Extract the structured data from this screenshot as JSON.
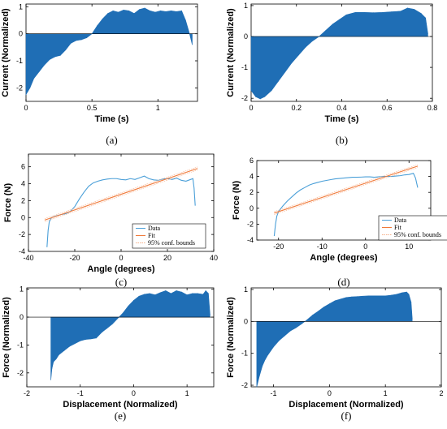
{
  "colors": {
    "fill": "#1f6eb5",
    "data_line": "#4a9fd8",
    "fit_line": "#f07a3a",
    "axis": "#000000"
  },
  "chart_data": [
    {
      "id": "a",
      "caption": "(a)",
      "type": "area",
      "xlabel": "Time (s)",
      "ylabel": "Current (Normalized)",
      "xlim": [
        0,
        1.3
      ],
      "ylim": [
        -2.5,
        1.1
      ],
      "xticks": [
        0,
        0.5,
        1
      ],
      "yticks": [
        -2,
        -1,
        0,
        1
      ],
      "x": [
        0,
        0.03,
        0.06,
        0.1,
        0.14,
        0.18,
        0.22,
        0.26,
        0.3,
        0.34,
        0.38,
        0.42,
        0.46,
        0.5,
        0.54,
        0.58,
        0.62,
        0.66,
        0.7,
        0.74,
        0.78,
        0.82,
        0.86,
        0.9,
        0.94,
        0.98,
        1.02,
        1.06,
        1.1,
        1.14,
        1.18,
        1.21,
        1.24,
        1.26
      ],
      "y": [
        -2.25,
        -2.0,
        -1.65,
        -1.4,
        -1.15,
        -0.95,
        -0.85,
        -0.8,
        -0.6,
        -0.35,
        -0.25,
        -0.22,
        -0.15,
        0.0,
        0.3,
        0.55,
        0.75,
        0.85,
        0.8,
        0.88,
        0.85,
        0.75,
        0.9,
        0.95,
        0.85,
        0.8,
        0.85,
        0.82,
        0.85,
        0.82,
        0.85,
        0.5,
        0.0,
        -0.4
      ]
    },
    {
      "id": "b",
      "caption": "(b)",
      "type": "area",
      "xlabel": "Time (s)",
      "ylabel": "Current (Normalized)",
      "xlim": [
        0,
        0.8
      ],
      "ylim": [
        -2.1,
        1.05
      ],
      "xticks": [
        0,
        0.2,
        0.4,
        0.6,
        0.8
      ],
      "yticks": [
        -2,
        -1,
        0,
        1
      ],
      "x": [
        0,
        0.02,
        0.04,
        0.06,
        0.09,
        0.12,
        0.15,
        0.18,
        0.21,
        0.24,
        0.27,
        0.3,
        0.33,
        0.36,
        0.39,
        0.42,
        0.46,
        0.5,
        0.54,
        0.58,
        0.62,
        0.66,
        0.69,
        0.72,
        0.75,
        0.77,
        0.78
      ],
      "y": [
        -1.75,
        -1.95,
        -2.02,
        -1.95,
        -1.75,
        -1.45,
        -1.15,
        -0.85,
        -0.6,
        -0.35,
        -0.15,
        0.0,
        0.2,
        0.4,
        0.55,
        0.7,
        0.78,
        0.78,
        0.77,
        0.78,
        0.8,
        0.82,
        0.92,
        0.88,
        0.75,
        0.6,
        0.1
      ]
    },
    {
      "id": "c",
      "caption": "(c)",
      "type": "line",
      "xlabel": "Angle (degrees)",
      "ylabel": "Force (N)",
      "xlim": [
        -40,
        40
      ],
      "ylim": [
        -4,
        7.5
      ],
      "xticks": [
        -40,
        -20,
        0,
        20,
        40
      ],
      "yticks": [
        -4,
        -2,
        0,
        2,
        4,
        6
      ],
      "legend": [
        "Data",
        "Fit",
        "95% conf. bounds"
      ],
      "legend_position": "bottom-center",
      "series": [
        {
          "name": "Data",
          "x": [
            -32,
            -31.5,
            -31,
            -30,
            -28,
            -26,
            -24,
            -22,
            -20,
            -18,
            -16,
            -14,
            -12,
            -10,
            -8,
            -6,
            -4,
            -2,
            0,
            2,
            4,
            6,
            8,
            10,
            12,
            14,
            16,
            18,
            20,
            22,
            24,
            26,
            28,
            30,
            31,
            31.5,
            32
          ],
          "y": [
            -3.5,
            -1.5,
            -0.5,
            0.0,
            0.2,
            0.35,
            0.45,
            0.7,
            1.3,
            2.2,
            3.0,
            3.7,
            4.1,
            4.3,
            4.45,
            4.55,
            4.6,
            4.6,
            4.5,
            4.45,
            4.6,
            4.5,
            4.7,
            4.9,
            4.6,
            4.45,
            4.4,
            4.55,
            4.6,
            4.5,
            4.65,
            4.4,
            4.3,
            4.5,
            4.6,
            3.5,
            1.4
          ]
        },
        {
          "name": "Fit",
          "x": [
            -33,
            33
          ],
          "y": [
            -0.3,
            5.8
          ]
        }
      ]
    },
    {
      "id": "d",
      "caption": "(d)",
      "type": "line",
      "xlabel": "Angle (degrees)",
      "ylabel": "Force (N)",
      "xlim": [
        -25,
        15
      ],
      "ylim": [
        -4,
        6
      ],
      "xticks": [
        -20,
        -10,
        0,
        10
      ],
      "yticks": [
        -4,
        -2,
        0,
        2,
        4,
        6
      ],
      "legend": [
        "Data",
        "Fit",
        "95% conf. bounds"
      ],
      "legend_position": "bottom-right",
      "series": [
        {
          "name": "Data",
          "x": [
            -21,
            -20.7,
            -20.4,
            -20,
            -19,
            -18,
            -17,
            -16,
            -15,
            -14,
            -13,
            -12,
            -11,
            -10,
            -9,
            -8,
            -7,
            -6,
            -5,
            -4,
            -3,
            -2,
            -1,
            0,
            1,
            2,
            3,
            4,
            5,
            6,
            7,
            8,
            9,
            10,
            11,
            11.5,
            12
          ],
          "y": [
            -3.5,
            -2.0,
            -1.0,
            -0.4,
            0.3,
            0.9,
            1.4,
            1.9,
            2.3,
            2.6,
            2.9,
            3.1,
            3.25,
            3.4,
            3.5,
            3.6,
            3.7,
            3.75,
            3.8,
            3.85,
            3.9,
            3.9,
            3.92,
            3.95,
            3.95,
            3.9,
            3.95,
            4.0,
            4.0,
            4.0,
            4.05,
            4.1,
            4.2,
            4.25,
            4.4,
            3.8,
            2.6
          ]
        },
        {
          "name": "Fit",
          "x": [
            -21,
            12
          ],
          "y": [
            -0.6,
            5.3
          ]
        }
      ]
    },
    {
      "id": "e",
      "caption": "(e)",
      "type": "area",
      "xlabel": "Displacement (Normalized)",
      "ylabel": "Force (Normalized)",
      "xlim": [
        -2,
        1.5
      ],
      "ylim": [
        -2.5,
        1.05
      ],
      "xticks": [
        -2,
        -1,
        0,
        1
      ],
      "yticks": [
        -2,
        -1,
        0,
        1
      ],
      "x": [
        -1.55,
        -1.53,
        -1.5,
        -1.45,
        -1.4,
        -1.3,
        -1.2,
        -1.1,
        -1.0,
        -0.9,
        -0.8,
        -0.7,
        -0.6,
        -0.5,
        -0.4,
        -0.3,
        -0.2,
        -0.1,
        0.0,
        0.1,
        0.2,
        0.3,
        0.4,
        0.5,
        0.6,
        0.7,
        0.8,
        0.9,
        1.0,
        1.1,
        1.2,
        1.3,
        1.35,
        1.4,
        1.43
      ],
      "y": [
        -2.25,
        -1.85,
        -1.6,
        -1.5,
        -1.35,
        -1.2,
        -1.05,
        -0.95,
        -0.85,
        -0.8,
        -0.78,
        -0.75,
        -0.55,
        -0.4,
        -0.25,
        -0.05,
        0.15,
        0.4,
        0.6,
        0.75,
        0.82,
        0.85,
        0.8,
        0.88,
        0.95,
        0.85,
        0.95,
        0.9,
        0.8,
        0.85,
        0.85,
        0.82,
        0.95,
        0.85,
        0.1
      ]
    },
    {
      "id": "f",
      "caption": "(f)",
      "type": "area",
      "xlabel": "Displacement (Normalized)",
      "ylabel": "Force (Normalized)",
      "xlim": [
        -1.4,
        2
      ],
      "ylim": [
        -2.05,
        1.05
      ],
      "xticks": [
        -1,
        0,
        1,
        2
      ],
      "yticks": [
        -2,
        -1,
        0,
        1
      ],
      "x": [
        -1.3,
        -1.25,
        -1.2,
        -1.15,
        -1.1,
        -1.0,
        -0.9,
        -0.8,
        -0.7,
        -0.6,
        -0.5,
        -0.4,
        -0.3,
        -0.2,
        -0.1,
        0.0,
        0.1,
        0.2,
        0.3,
        0.4,
        0.5,
        0.6,
        0.7,
        0.8,
        0.9,
        1.0,
        1.1,
        1.2,
        1.3,
        1.38,
        1.42,
        1.46,
        1.48
      ],
      "y": [
        -2.05,
        -1.7,
        -1.4,
        -1.2,
        -1.05,
        -0.8,
        -0.6,
        -0.45,
        -0.3,
        -0.2,
        -0.08,
        0.05,
        0.2,
        0.32,
        0.45,
        0.55,
        0.65,
        0.7,
        0.75,
        0.77,
        0.78,
        0.79,
        0.8,
        0.8,
        0.8,
        0.8,
        0.82,
        0.85,
        0.9,
        0.92,
        0.85,
        0.6,
        0.1
      ]
    }
  ]
}
